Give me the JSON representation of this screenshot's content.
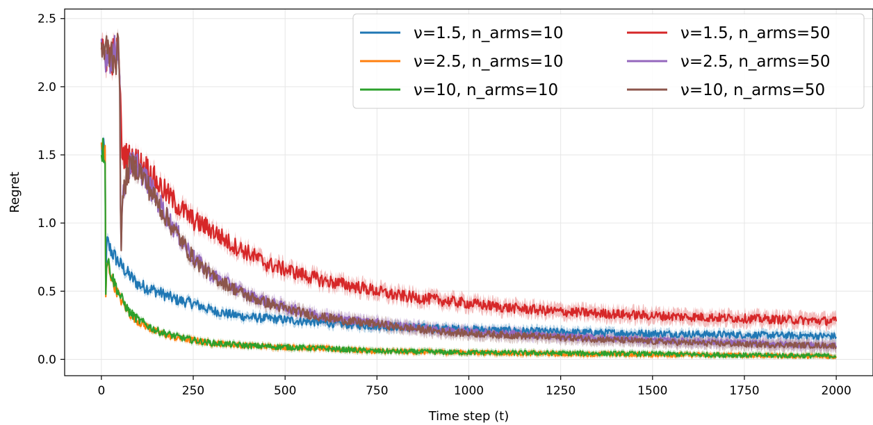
{
  "chart_data": {
    "type": "line",
    "xlabel": "Time step (t)",
    "ylabel": "Regret",
    "xlim": [
      -100,
      2100
    ],
    "ylim": [
      -0.12,
      2.57
    ],
    "x_ticks": [
      0,
      250,
      500,
      750,
      1000,
      1250,
      1500,
      1750,
      2000
    ],
    "x_tick_labels": [
      "0",
      "250",
      "500",
      "750",
      "1000",
      "1250",
      "1500",
      "1750",
      "2000"
    ],
    "y_ticks": [
      0.0,
      0.5,
      1.0,
      1.5,
      2.0,
      2.5
    ],
    "y_tick_labels": [
      "0.0",
      "0.5",
      "1.0",
      "1.5",
      "2.0",
      "2.5"
    ],
    "grid": true,
    "legend_position": "top-right",
    "legend_columns": 2,
    "confidence_bands": true,
    "series": [
      {
        "name": "ν=1.5, n_arms=10",
        "color": "#1f77b4",
        "x": [
          0,
          5,
          10,
          12,
          15,
          20,
          30,
          50,
          75,
          100,
          150,
          200,
          250,
          300,
          350,
          400,
          500,
          600,
          700,
          800,
          900,
          1000,
          1250,
          1500,
          1750,
          2000
        ],
        "values": [
          1.55,
          1.52,
          1.5,
          0.55,
          0.88,
          0.83,
          0.78,
          0.7,
          0.62,
          0.55,
          0.5,
          0.44,
          0.41,
          0.36,
          0.33,
          0.31,
          0.29,
          0.27,
          0.25,
          0.24,
          0.23,
          0.22,
          0.2,
          0.19,
          0.18,
          0.17
        ],
        "band": 0.03
      },
      {
        "name": "ν=2.5, n_arms=10",
        "color": "#ff7f0e",
        "x": [
          0,
          5,
          10,
          12,
          15,
          20,
          30,
          50,
          75,
          100,
          150,
          200,
          250,
          300,
          400,
          500,
          600,
          750,
          1000,
          1250,
          1500,
          1750,
          2000
        ],
        "values": [
          1.53,
          1.52,
          1.5,
          0.45,
          0.72,
          0.68,
          0.58,
          0.45,
          0.34,
          0.28,
          0.2,
          0.16,
          0.14,
          0.12,
          0.1,
          0.09,
          0.08,
          0.06,
          0.05,
          0.04,
          0.035,
          0.03,
          0.02
        ],
        "band": 0.02
      },
      {
        "name": "ν=10, n_arms=10",
        "color": "#2ca02c",
        "x": [
          0,
          5,
          10,
          12,
          15,
          20,
          30,
          50,
          75,
          100,
          150,
          200,
          250,
          300,
          400,
          500,
          600,
          750,
          1000,
          1250,
          1500,
          1750,
          2000
        ],
        "values": [
          1.55,
          1.53,
          1.52,
          0.5,
          0.75,
          0.7,
          0.6,
          0.47,
          0.35,
          0.29,
          0.21,
          0.17,
          0.14,
          0.12,
          0.1,
          0.09,
          0.08,
          0.06,
          0.05,
          0.045,
          0.04,
          0.03,
          0.025
        ],
        "band": 0.02
      },
      {
        "name": "ν=1.5, n_arms=50",
        "color": "#d62728",
        "x": [
          0,
          10,
          20,
          30,
          40,
          47,
          50,
          55,
          60,
          75,
          100,
          125,
          150,
          200,
          250,
          300,
          350,
          400,
          450,
          500,
          600,
          700,
          750,
          800,
          900,
          1000,
          1100,
          1250,
          1500,
          1750,
          2000
        ],
        "values": [
          2.22,
          2.23,
          2.24,
          2.23,
          2.22,
          2.23,
          2.1,
          1.55,
          1.5,
          1.48,
          1.45,
          1.4,
          1.3,
          1.15,
          1.02,
          0.95,
          0.85,
          0.78,
          0.7,
          0.66,
          0.58,
          0.53,
          0.5,
          0.47,
          0.44,
          0.41,
          0.38,
          0.35,
          0.32,
          0.3,
          0.28
        ],
        "band": 0.05
      },
      {
        "name": "ν=2.5, n_arms=50",
        "color": "#9467bd",
        "x": [
          0,
          10,
          20,
          30,
          40,
          47,
          50,
          53,
          55,
          60,
          70,
          80,
          90,
          100,
          150,
          200,
          250,
          300,
          400,
          500,
          600,
          700,
          750,
          800,
          900,
          1000,
          1250,
          1500,
          1750,
          2000
        ],
        "values": [
          2.25,
          2.26,
          2.25,
          2.24,
          2.23,
          2.37,
          2.0,
          0.75,
          1.0,
          1.2,
          1.38,
          1.43,
          1.44,
          1.42,
          1.18,
          0.95,
          0.75,
          0.62,
          0.47,
          0.38,
          0.32,
          0.28,
          0.27,
          0.25,
          0.22,
          0.2,
          0.17,
          0.14,
          0.12,
          0.1
        ],
        "band": 0.04
      },
      {
        "name": "ν=10, n_arms=50",
        "color": "#8c564b",
        "x": [
          0,
          10,
          20,
          30,
          40,
          47,
          50,
          53,
          55,
          60,
          70,
          80,
          90,
          100,
          150,
          200,
          250,
          300,
          400,
          500,
          600,
          700,
          750,
          800,
          900,
          1000,
          1250,
          1500,
          1750,
          2000
        ],
        "values": [
          2.26,
          2.27,
          2.25,
          2.24,
          2.23,
          2.25,
          2.05,
          0.72,
          1.0,
          1.22,
          1.36,
          1.42,
          1.42,
          1.4,
          1.16,
          0.94,
          0.74,
          0.61,
          0.46,
          0.37,
          0.31,
          0.27,
          0.26,
          0.24,
          0.21,
          0.19,
          0.16,
          0.13,
          0.11,
          0.1
        ],
        "band": 0.04
      }
    ]
  }
}
